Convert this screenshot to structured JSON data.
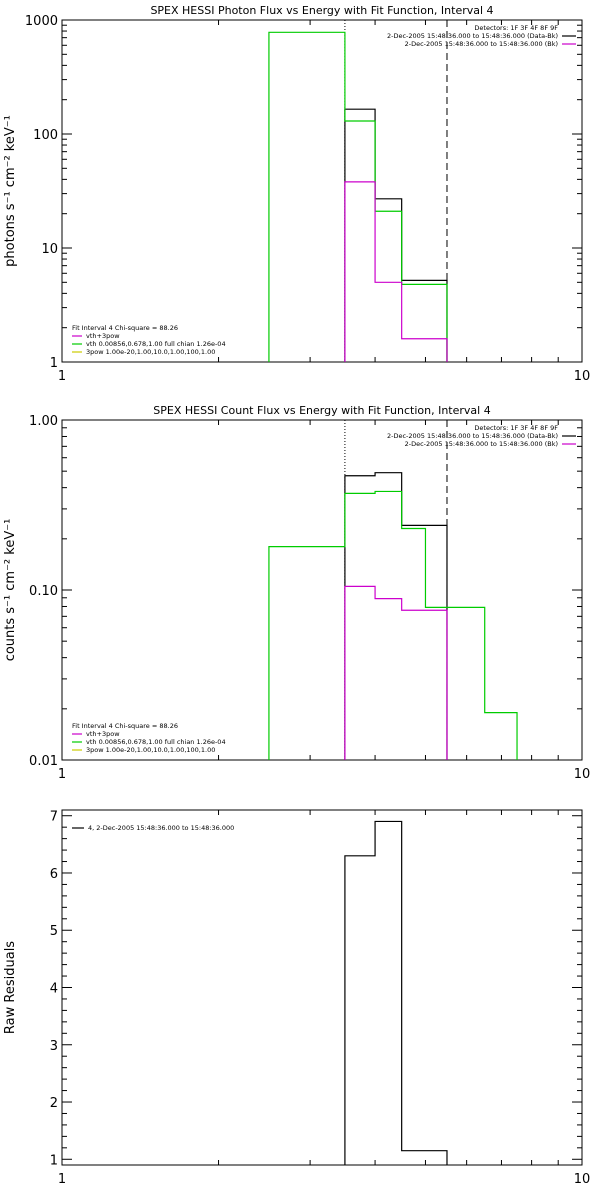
{
  "chart_data": [
    {
      "type": "line",
      "title": "SPEX HESSI Photon Flux vs Energy with Fit Function, Interval 4",
      "xlabel": "",
      "ylabel": "photons s⁻¹ cm⁻² keV⁻¹",
      "xscale": "log",
      "yscale": "log",
      "xlim": [
        1,
        10
      ],
      "ylim": [
        1,
        1000
      ],
      "xticks": [
        {
          "v": 1,
          "label": "1"
        },
        {
          "v": 10,
          "label": "10"
        }
      ],
      "yticks": [
        {
          "v": 1,
          "label": "1"
        },
        {
          "v": 10,
          "label": "10"
        },
        {
          "v": 100,
          "label": "100"
        },
        {
          "v": 1000,
          "label": "1000"
        }
      ],
      "vlines": [
        {
          "x": 3.5,
          "style": "dotted",
          "color": "#000000"
        },
        {
          "x": 5.5,
          "style": "dashed",
          "color": "#000000"
        }
      ],
      "legend_top": {
        "placement": "top-right",
        "lines": [
          {
            "text": "Detectors: 1F 3F 4F 8F 9F",
            "color": ""
          },
          {
            "text": "2-Dec-2005 15:48:36.000 to 15:48:36.000 (Data-Bk)",
            "color": "#000000"
          },
          {
            "text": "2-Dec-2005 15:48:36.000 to 15:48:36.000 (Bk)",
            "color": "#cc00cc"
          }
        ]
      },
      "legend_bottom": {
        "placement": "bottom-left",
        "lines": [
          {
            "text": "Fit Interval 4   Chi-square = 88.26",
            "color": ""
          },
          {
            "text": "vth+3pow",
            "color": "#cc00cc"
          },
          {
            "text": "vth 0.00856,0.678,1.00   full chian 1.26e-04",
            "color": "#00cc00"
          },
          {
            "text": "3pow 1.00e-20,1.00,10.0,1.00,100,1.00",
            "color": "#cccc00"
          }
        ]
      },
      "series": [
        {
          "color": "#000000",
          "edges": [
            3.5,
            4.0,
            4.5,
            5.0,
            5.5
          ],
          "values": [
            165,
            27,
            5.2,
            5.2
          ]
        },
        {
          "color": "#00cc00",
          "edges": [
            2.5,
            3.5,
            4.0,
            4.5,
            5.0,
            5.5
          ],
          "values": [
            780,
            130,
            21,
            4.8,
            4.8
          ]
        },
        {
          "color": "#cc00cc",
          "edges": [
            3.5,
            4.0,
            4.5,
            5.0,
            5.5
          ],
          "values": [
            38,
            5.0,
            1.6,
            1.6
          ]
        }
      ]
    },
    {
      "type": "line",
      "title": "SPEX HESSI Count Flux vs Energy with Fit Function, Interval 4",
      "xlabel": "",
      "ylabel": "counts s⁻¹ cm⁻² keV⁻¹",
      "xscale": "log",
      "yscale": "log",
      "xlim": [
        1,
        10
      ],
      "ylim": [
        0.01,
        1.0
      ],
      "xticks": [
        {
          "v": 1,
          "label": "1"
        },
        {
          "v": 10,
          "label": "10"
        }
      ],
      "yticks": [
        {
          "v": 0.01,
          "label": "0.01"
        },
        {
          "v": 0.1,
          "label": "0.10"
        },
        {
          "v": 1.0,
          "label": "1.00"
        }
      ],
      "vlines": [
        {
          "x": 3.5,
          "style": "dotted",
          "color": "#000000"
        },
        {
          "x": 5.5,
          "style": "dashed",
          "color": "#000000"
        }
      ],
      "legend_top": {
        "placement": "top-right",
        "lines": [
          {
            "text": "Detectors: 1F 3F 4F 8F 9F",
            "color": ""
          },
          {
            "text": "2-Dec-2005 15:48:36.000 to 15:48:36.000 (Data-Bk)",
            "color": "#000000"
          },
          {
            "text": "2-Dec-2005 15:48:36.000 to 15:48:36.000 (Bk)",
            "color": "#cc00cc"
          }
        ]
      },
      "legend_bottom": {
        "placement": "bottom-left",
        "lines": [
          {
            "text": "Fit Interval 4   Chi-square = 88.26",
            "color": ""
          },
          {
            "text": "vth+3pow",
            "color": "#cc00cc"
          },
          {
            "text": "vth 0.00856,0.678,1.00   full chian 1.26e-04",
            "color": "#00cc00"
          },
          {
            "text": "3pow 1.00e-20,1.00,10.0,1.00,100,1.00",
            "color": "#cccc00"
          }
        ]
      },
      "series": [
        {
          "color": "#000000",
          "edges": [
            3.5,
            4.0,
            4.5,
            5.0,
            5.5
          ],
          "values": [
            0.47,
            0.49,
            0.24,
            0.24
          ]
        },
        {
          "color": "#00cc00",
          "edges": [
            2.5,
            3.5,
            4.0,
            4.5,
            5.0,
            5.5,
            6.5,
            7.5
          ],
          "values": [
            0.18,
            0.37,
            0.38,
            0.23,
            0.079,
            0.079,
            0.019
          ]
        },
        {
          "color": "#cc00cc",
          "edges": [
            3.5,
            4.0,
            4.5,
            5.0,
            5.5
          ],
          "values": [
            0.105,
            0.089,
            0.076,
            0.076
          ]
        }
      ]
    },
    {
      "type": "line",
      "title": "",
      "xlabel": "",
      "ylabel": "Raw Residuals",
      "xscale": "log",
      "yscale": "linear",
      "xlim": [
        1,
        10
      ],
      "ylim": [
        0.9,
        7.1
      ],
      "xticks": [
        {
          "v": 1,
          "label": "1"
        },
        {
          "v": 10,
          "label": "10"
        }
      ],
      "yticks": [
        {
          "v": 1,
          "label": "1"
        },
        {
          "v": 2,
          "label": "2"
        },
        {
          "v": 3,
          "label": "3"
        },
        {
          "v": 4,
          "label": "4"
        },
        {
          "v": 5,
          "label": "5"
        },
        {
          "v": 6,
          "label": "6"
        },
        {
          "v": 7,
          "label": "7"
        }
      ],
      "vlines": [],
      "legend_top": {
        "placement": "top-left",
        "lines": [
          {
            "text": "4,  2-Dec-2005 15:48:36.000 to 15:48:36.000",
            "color": "#000000"
          }
        ]
      },
      "legend_bottom": {
        "placement": "",
        "lines": []
      },
      "series": [
        {
          "color": "#000000",
          "edges": [
            3.5,
            4.0,
            4.5,
            5.0,
            5.5
          ],
          "values": [
            6.3,
            6.9,
            1.15,
            1.15
          ]
        }
      ]
    }
  ]
}
